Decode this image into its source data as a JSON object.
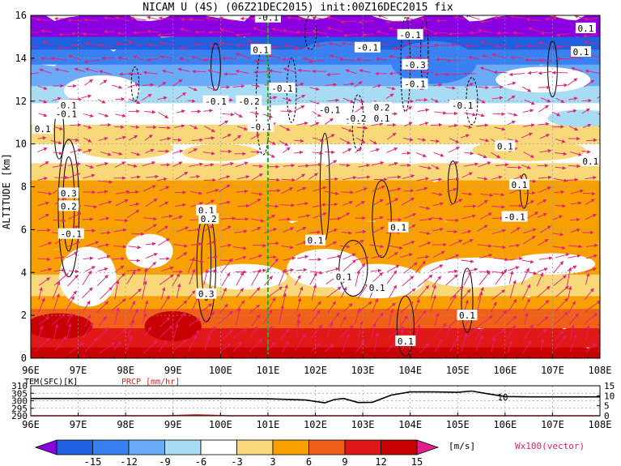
{
  "chart_data": [
    {
      "type": "heatmap",
      "title": "NICAM U (4S) (06Z21DEC2015) init:00Z16DEC2015 fix",
      "ylabel": "ALTITUDE [km]",
      "xlabel": "",
      "xlim": [
        96,
        108
      ],
      "ylim": [
        0,
        16
      ],
      "x_ticks": [
        "96E",
        "97E",
        "98E",
        "99E",
        "100E",
        "101E",
        "102E",
        "103E",
        "104E",
        "105E",
        "106E",
        "107E",
        "108E"
      ],
      "y_ticks": [
        "0",
        "2",
        "4",
        "6",
        "8",
        "10",
        "12",
        "14",
        "16"
      ],
      "reference_line_x": 101,
      "colorbar": {
        "levels": [
          "-15",
          "-12",
          "-9",
          "-6",
          "-3",
          "3",
          "6",
          "9",
          "12",
          "15"
        ],
        "unit": "[m/s]",
        "colors": [
          "#8b00e0",
          "#1f5fe0",
          "#3a80f0",
          "#6aaaf6",
          "#a8dcf4",
          "#ffffff",
          "#f8d878",
          "#f8a000",
          "#f06018",
          "#e01818",
          "#c80000",
          "#e0208a"
        ]
      },
      "vector_label": "Wx100(vector)",
      "contour_labels": [
        {
          "x": 96.25,
          "y": 10.7,
          "text": "0.1"
        },
        {
          "x": 96.8,
          "y": 11.8,
          "text": "0.1"
        },
        {
          "x": 96.75,
          "y": 11.4,
          "text": "-0.1"
        },
        {
          "x": 96.8,
          "y": 7.7,
          "text": "0.3"
        },
        {
          "x": 96.8,
          "y": 7.1,
          "text": "0.2"
        },
        {
          "x": 96.85,
          "y": 5.8,
          "text": "-0.1"
        },
        {
          "x": 99.7,
          "y": 6.9,
          "text": "0.1"
        },
        {
          "x": 99.75,
          "y": 6.5,
          "text": "0.2"
        },
        {
          "x": 99.7,
          "y": 3.0,
          "text": "0.3"
        },
        {
          "x": 99.9,
          "y": 12.0,
          "text": "-0.1"
        },
        {
          "x": 100.6,
          "y": 12.0,
          "text": "-0.2"
        },
        {
          "x": 101.3,
          "y": 12.6,
          "text": "-0.1"
        },
        {
          "x": 100.85,
          "y": 10.8,
          "text": "-0.1"
        },
        {
          "x": 100.85,
          "y": 14.4,
          "text": "0.1"
        },
        {
          "x": 101.0,
          "y": 15.9,
          "text": "-0.1"
        },
        {
          "x": 102.3,
          "y": 11.6,
          "text": "-0.1"
        },
        {
          "x": 102.8,
          "y": 11.1,
          "text": "0.1"
        },
        {
          "x": 102.85,
          "y": 11.2,
          "text": "-0.2"
        },
        {
          "x": 103.4,
          "y": 11.7,
          "text": "0.2"
        },
        {
          "x": 103.4,
          "y": 11.2,
          "text": "0.1"
        },
        {
          "x": 103.1,
          "y": 14.5,
          "text": "-0.1"
        },
        {
          "x": 104.0,
          "y": 15.1,
          "text": "-0.1"
        },
        {
          "x": 104.1,
          "y": 12.8,
          "text": "-0.1"
        },
        {
          "x": 104.1,
          "y": 13.7,
          "text": "-0.3"
        },
        {
          "x": 105.1,
          "y": 11.8,
          "text": "-0.1"
        },
        {
          "x": 106.0,
          "y": 9.9,
          "text": "0.1"
        },
        {
          "x": 107.7,
          "y": 15.4,
          "text": "0.1"
        },
        {
          "x": 107.6,
          "y": 14.3,
          "text": "0.1"
        },
        {
          "x": 107.8,
          "y": 9.2,
          "text": "0.1"
        },
        {
          "x": 106.3,
          "y": 8.1,
          "text": "0.1"
        },
        {
          "x": 106.2,
          "y": 6.6,
          "text": "-0.1"
        },
        {
          "x": 102.0,
          "y": 5.5,
          "text": "0.1"
        },
        {
          "x": 103.75,
          "y": 6.1,
          "text": "0.1"
        },
        {
          "x": 102.6,
          "y": 3.8,
          "text": "0.1"
        },
        {
          "x": 103.3,
          "y": 3.3,
          "text": "0.1"
        },
        {
          "x": 103.9,
          "y": 0.8,
          "text": "0.1"
        },
        {
          "x": 105.2,
          "y": 2.0,
          "text": "0.1"
        }
      ]
    },
    {
      "type": "line",
      "xlim": [
        96,
        108
      ],
      "y_left_ticks": [
        "290",
        "295",
        "300",
        "305",
        "310"
      ],
      "y_right_ticks": [
        "0",
        "5",
        "10",
        "15"
      ],
      "ylim_left": [
        290,
        310
      ],
      "ylim_right": [
        0,
        15
      ],
      "series": [
        {
          "name": "TEM(SFC)[K]",
          "x": [
            96,
            97,
            98,
            99,
            100,
            101,
            101.8,
            102.2,
            102.4,
            102.6,
            102.9,
            103.2,
            103.6,
            104,
            104.5,
            105,
            105.3,
            105.6,
            106,
            106.5,
            107,
            108
          ],
          "y": [
            301.5,
            301.5,
            301.5,
            301.5,
            301.5,
            301.3,
            300.5,
            298.6,
            300.8,
            301.5,
            298.8,
            299.0,
            303.8,
            305.9,
            305.9,
            305.6,
            306.5,
            304.8,
            302.8,
            302.6,
            302.6,
            302.6
          ]
        },
        {
          "name": "PRCP [mm/hr]",
          "x": [
            96,
            98.9,
            99.2,
            99.5,
            99.8,
            100.2,
            108
          ],
          "y": [
            0,
            0,
            0.3,
            0.5,
            0.3,
            0,
            0
          ]
        }
      ],
      "annotations": [
        {
          "x": 105.95,
          "y": 302.5,
          "text": "10"
        }
      ]
    }
  ]
}
